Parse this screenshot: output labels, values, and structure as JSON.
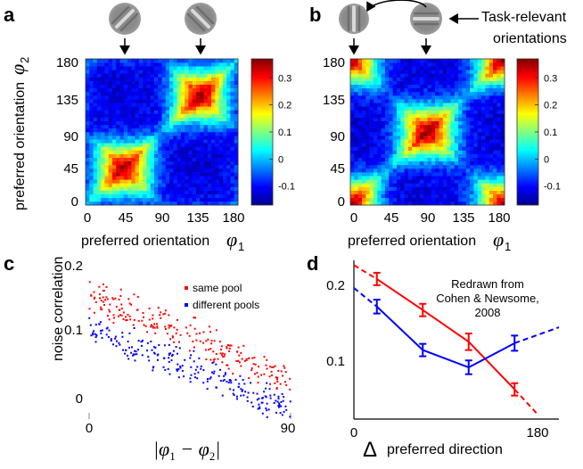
{
  "panels": {
    "a": {
      "label": "a",
      "y_label": "preferred orientation",
      "y_symbol": "φ",
      "y_symbol_sub": "2",
      "x_label": "preferred orientation",
      "x_symbol": "φ",
      "x_symbol_sub": "1",
      "cluster_centers_deg": [
        45,
        135
      ],
      "gabor_orientations_deg": [
        45,
        135
      ]
    },
    "b": {
      "label": "b",
      "callout": "Task-relevant orientations",
      "callout_line1": "Task-relevant",
      "callout_line2": "orientations",
      "x_label": "preferred orientation",
      "x_symbol": "φ",
      "x_symbol_sub": "1",
      "cluster_centers_deg": [
        0,
        90,
        180
      ],
      "gabor_orientations_deg": [
        0,
        90
      ]
    },
    "c": {
      "label": "c",
      "y_label": "noise correlation",
      "x_label": "|φ1 − φ2|",
      "x_label_main": "|φ",
      "x_label_sub1": "1",
      "x_label_minus": " − φ",
      "x_label_sub2": "2",
      "x_label_end": "|"
    },
    "d": {
      "label": "d",
      "annotation_line1": "Redrawn from",
      "annotation_line2": "Cohen & Newsome,",
      "annotation_line3": "2008",
      "x_label_symbol": "Δ",
      "x_label": "preferred direction"
    }
  },
  "colorbar": {
    "ticks": [
      "0.3",
      "0.2",
      "0.1",
      "0",
      "-0.1"
    ],
    "tick_values": [
      0.3,
      0.2,
      0.1,
      0,
      -0.1
    ],
    "range": [
      -0.17,
      0.37
    ]
  },
  "chart_data": [
    {
      "id": "a",
      "type": "heatmap",
      "title": "",
      "xlabel": "preferred orientation φ1",
      "ylabel": "preferred orientation φ2",
      "x_ticks": [
        "0",
        "45",
        "90",
        "135",
        "180"
      ],
      "y_ticks": [
        "0",
        "45",
        "90",
        "135",
        "180"
      ],
      "xlim": [
        0,
        180
      ],
      "ylim": [
        0,
        180
      ],
      "colorbar_ticks": [
        "0.3",
        "0.2",
        "0.1",
        "0",
        "-0.1"
      ],
      "description_values": {
        "peak": 0.3,
        "trough": -0.12
      }
    },
    {
      "id": "b",
      "type": "heatmap",
      "title": "",
      "xlabel": "preferred orientation φ1",
      "ylabel": "",
      "x_ticks": [
        "0",
        "45",
        "90",
        "135",
        "180"
      ],
      "y_ticks": [
        "0",
        "45",
        "90",
        "135",
        "180"
      ],
      "xlim": [
        0,
        180
      ],
      "ylim": [
        0,
        180
      ],
      "colorbar_ticks": [
        "0.3",
        "0.2",
        "0.1",
        "0",
        "-0.1"
      ],
      "description_values": {
        "peak": 0.3,
        "trough": -0.12
      }
    },
    {
      "id": "c",
      "type": "scatter",
      "xlabel": "|φ1 − φ2|",
      "ylabel": "noise correlation",
      "x_ticks": [
        "0",
        "90"
      ],
      "y_ticks": [
        "0.2",
        "0.1",
        "0"
      ],
      "xlim": [
        0,
        90
      ],
      "ylim": [
        -0.04,
        0.22
      ],
      "legend": [
        "same pool",
        "different pools"
      ],
      "series": [
        {
          "name": "same pool",
          "color": "#ff0000",
          "start": [
            0,
            0.165
          ],
          "end": [
            90,
            0.022
          ],
          "n": 230
        },
        {
          "name": "different pools",
          "color": "#0000ff",
          "start": [
            0,
            0.108
          ],
          "end": [
            90,
            -0.022
          ],
          "n": 230
        }
      ]
    },
    {
      "id": "d",
      "type": "line",
      "xlabel": "Δ preferred direction",
      "ylabel": "",
      "x_ticks": [
        "0",
        "180"
      ],
      "y_ticks": [
        "0.2",
        "0.1"
      ],
      "xlim": [
        0,
        180
      ],
      "ylim": [
        0.0,
        0.23
      ],
      "annotation": "Redrawn from Cohen & Newsome, 2008",
      "series": [
        {
          "name": "red",
          "color": "#ff0000",
          "x": [
            22.5,
            67.5,
            112.5,
            157.5
          ],
          "values": [
            0.203,
            0.158,
            0.112,
            0.043
          ],
          "errors": [
            0.009,
            0.009,
            0.012,
            0.009
          ],
          "dash_start": [
            0,
            0.223
          ],
          "dash_end": [
            180,
            0.007
          ]
        },
        {
          "name": "blue",
          "color": "#0000ff",
          "x": [
            22.5,
            67.5,
            112.5,
            157.5
          ],
          "values": [
            0.163,
            0.1,
            0.075,
            0.11
          ],
          "errors": [
            0.01,
            0.009,
            0.01,
            0.011
          ],
          "dash_start": [
            0,
            0.19
          ],
          "dash_end": [
            180,
            0.133
          ]
        }
      ]
    }
  ]
}
